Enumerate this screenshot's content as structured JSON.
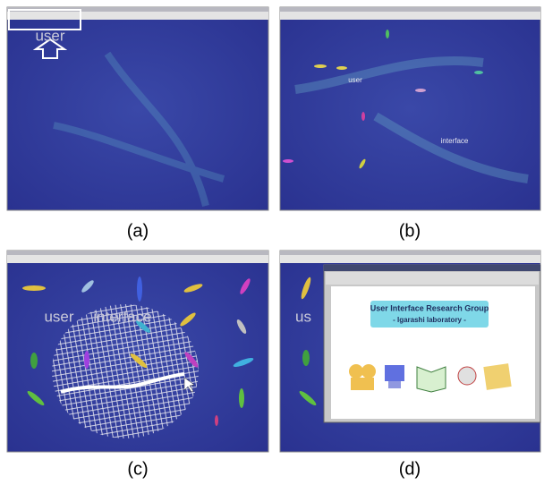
{
  "panels": [
    {
      "caption": "(a)",
      "labels": [
        "user"
      ]
    },
    {
      "caption": "(b)",
      "labels": [
        "user",
        "interface"
      ]
    },
    {
      "caption": "(c)",
      "labels": [
        "user",
        "interface"
      ]
    },
    {
      "caption": "(d)",
      "labels": [
        "us"
      ],
      "window": {
        "title": "User Interface Research Group",
        "subtitle": "- Igarashi laboratory -"
      }
    }
  ]
}
